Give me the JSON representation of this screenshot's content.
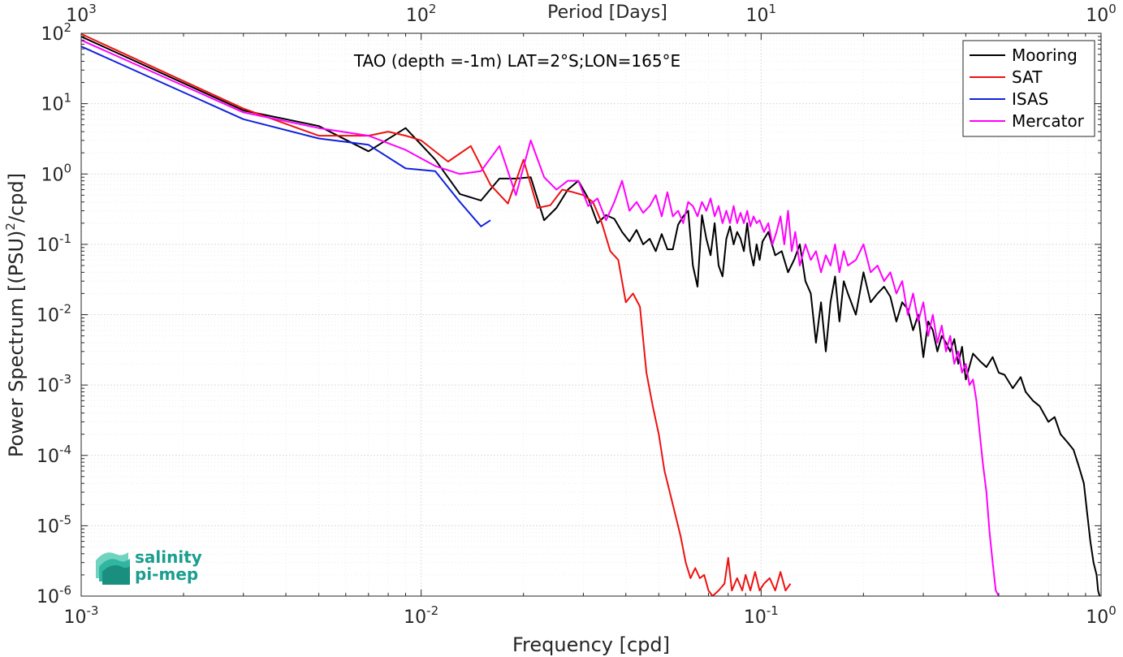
{
  "chart_data": {
    "type": "line",
    "title": "TAO (depth =-1m) LAT=2°S;LON=165°E",
    "xlabel": "Frequency [cpd]",
    "ylabel_main": "Power Spectrum [(PSU)",
    "ylabel_sup": "2",
    "ylabel_tail": "/cpd]",
    "x2label": "Period [Days]",
    "xscale": "log",
    "yscale": "log",
    "xlim": [
      0.001,
      1
    ],
    "ylim": [
      1e-06,
      100
    ],
    "grid": true,
    "legend_position": "top-right",
    "x_ticks": [
      {
        "v": 0.001,
        "base": "10",
        "exp": "-3"
      },
      {
        "v": 0.01,
        "base": "10",
        "exp": "-2"
      },
      {
        "v": 0.1,
        "base": "10",
        "exp": "-1"
      },
      {
        "v": 1,
        "base": "10",
        "exp": "0"
      }
    ],
    "x2_ticks": [
      {
        "v": 0.001,
        "base": "10",
        "exp": "3"
      },
      {
        "v": 0.01,
        "base": "10",
        "exp": "2"
      },
      {
        "v": 0.1,
        "base": "10",
        "exp": "1"
      },
      {
        "v": 1,
        "base": "10",
        "exp": "0"
      }
    ],
    "y_ticks": [
      {
        "v": 100,
        "base": "10",
        "exp": "2"
      },
      {
        "v": 10,
        "base": "10",
        "exp": "1"
      },
      {
        "v": 1,
        "base": "10",
        "exp": "0"
      },
      {
        "v": 0.1,
        "base": "10",
        "exp": "-1"
      },
      {
        "v": 0.01,
        "base": "10",
        "exp": "-2"
      },
      {
        "v": 0.001,
        "base": "10",
        "exp": "-3"
      },
      {
        "v": 0.0001,
        "base": "10",
        "exp": "-4"
      },
      {
        "v": 1e-05,
        "base": "10",
        "exp": "-5"
      },
      {
        "v": 1e-06,
        "base": "10",
        "exp": "-6"
      }
    ],
    "series": [
      {
        "name": "Mooring",
        "color": "#000000",
        "points": [
          [
            0.001,
            90
          ],
          [
            0.003,
            8
          ],
          [
            0.005,
            4.8
          ],
          [
            0.007,
            2.1
          ],
          [
            0.009,
            4.5
          ],
          [
            0.011,
            1.6
          ],
          [
            0.013,
            0.52
          ],
          [
            0.015,
            0.42
          ],
          [
            0.017,
            0.86
          ],
          [
            0.019,
            0.86
          ],
          [
            0.021,
            0.9
          ],
          [
            0.023,
            0.22
          ],
          [
            0.025,
            0.33
          ],
          [
            0.027,
            0.6
          ],
          [
            0.029,
            0.8
          ],
          [
            0.031,
            0.45
          ],
          [
            0.033,
            0.2
          ],
          [
            0.035,
            0.26
          ],
          [
            0.037,
            0.23
          ],
          [
            0.039,
            0.15
          ],
          [
            0.041,
            0.11
          ],
          [
            0.043,
            0.16
          ],
          [
            0.045,
            0.1
          ],
          [
            0.047,
            0.12
          ],
          [
            0.049,
            0.08
          ],
          [
            0.051,
            0.14
          ],
          [
            0.053,
            0.085
          ],
          [
            0.055,
            0.085
          ],
          [
            0.057,
            0.19
          ],
          [
            0.059,
            0.25
          ],
          [
            0.061,
            0.3
          ],
          [
            0.063,
            0.05
          ],
          [
            0.065,
            0.025
          ],
          [
            0.067,
            0.26
          ],
          [
            0.069,
            0.12
          ],
          [
            0.071,
            0.07
          ],
          [
            0.073,
            0.2
          ],
          [
            0.075,
            0.05
          ],
          [
            0.077,
            0.035
          ],
          [
            0.079,
            0.12
          ],
          [
            0.081,
            0.18
          ],
          [
            0.083,
            0.1
          ],
          [
            0.085,
            0.15
          ],
          [
            0.087,
            0.12
          ],
          [
            0.089,
            0.08
          ],
          [
            0.091,
            0.2
          ],
          [
            0.093,
            0.08
          ],
          [
            0.095,
            0.05
          ],
          [
            0.097,
            0.1
          ],
          [
            0.099,
            0.06
          ],
          [
            0.101,
            0.11
          ],
          [
            0.105,
            0.15
          ],
          [
            0.11,
            0.07
          ],
          [
            0.115,
            0.08
          ],
          [
            0.12,
            0.04
          ],
          [
            0.125,
            0.06
          ],
          [
            0.13,
            0.1
          ],
          [
            0.135,
            0.03
          ],
          [
            0.14,
            0.02
          ],
          [
            0.145,
            0.004
          ],
          [
            0.15,
            0.015
          ],
          [
            0.155,
            0.003
          ],
          [
            0.16,
            0.015
          ],
          [
            0.165,
            0.035
          ],
          [
            0.17,
            0.008
          ],
          [
            0.175,
            0.03
          ],
          [
            0.18,
            0.02
          ],
          [
            0.19,
            0.01
          ],
          [
            0.2,
            0.04
          ],
          [
            0.21,
            0.015
          ],
          [
            0.22,
            0.02
          ],
          [
            0.23,
            0.025
          ],
          [
            0.24,
            0.018
          ],
          [
            0.25,
            0.008
          ],
          [
            0.26,
            0.015
          ],
          [
            0.27,
            0.012
          ],
          [
            0.28,
            0.006
          ],
          [
            0.29,
            0.01
          ],
          [
            0.3,
            0.0025
          ],
          [
            0.31,
            0.008
          ],
          [
            0.32,
            0.006
          ],
          [
            0.33,
            0.003
          ],
          [
            0.34,
            0.005
          ],
          [
            0.35,
            0.004
          ],
          [
            0.36,
            0.003
          ],
          [
            0.37,
            0.0045
          ],
          [
            0.38,
            0.002
          ],
          [
            0.39,
            0.0035
          ],
          [
            0.4,
            0.0012
          ],
          [
            0.42,
            0.0028
          ],
          [
            0.44,
            0.0022
          ],
          [
            0.46,
            0.0018
          ],
          [
            0.48,
            0.0025
          ],
          [
            0.5,
            0.0015
          ],
          [
            0.52,
            0.0014
          ],
          [
            0.55,
            0.0009
          ],
          [
            0.58,
            0.0013
          ],
          [
            0.6,
            0.0008
          ],
          [
            0.63,
            0.0006
          ],
          [
            0.66,
            0.0005
          ],
          [
            0.7,
            0.0003
          ],
          [
            0.73,
            0.00035
          ],
          [
            0.76,
            0.0002
          ],
          [
            0.8,
            0.00015
          ],
          [
            0.83,
            0.00012
          ],
          [
            0.86,
            7e-05
          ],
          [
            0.89,
            4e-05
          ],
          [
            0.91,
            1.5e-05
          ],
          [
            0.93,
            6e-06
          ],
          [
            0.95,
            3e-06
          ],
          [
            0.97,
            2e-06
          ],
          [
            0.98,
            1.2e-06
          ],
          [
            0.99,
            1e-06
          ]
        ]
      },
      {
        "name": "SAT",
        "color": "#ee1111",
        "points": [
          [
            0.001,
            98
          ],
          [
            0.003,
            8.5
          ],
          [
            0.005,
            3.5
          ],
          [
            0.007,
            3.5
          ],
          [
            0.008,
            4.0
          ],
          [
            0.009,
            3.5
          ],
          [
            0.01,
            3.0
          ],
          [
            0.012,
            1.5
          ],
          [
            0.014,
            2.5
          ],
          [
            0.016,
            0.7
          ],
          [
            0.018,
            0.38
          ],
          [
            0.02,
            1.6
          ],
          [
            0.022,
            0.33
          ],
          [
            0.024,
            0.36
          ],
          [
            0.026,
            0.6
          ],
          [
            0.028,
            0.55
          ],
          [
            0.03,
            0.5
          ],
          [
            0.032,
            0.4
          ],
          [
            0.034,
            0.2
          ],
          [
            0.036,
            0.08
          ],
          [
            0.038,
            0.06
          ],
          [
            0.04,
            0.015
          ],
          [
            0.042,
            0.02
          ],
          [
            0.044,
            0.013
          ],
          [
            0.046,
            0.0015
          ],
          [
            0.048,
            0.0005
          ],
          [
            0.05,
            0.0002
          ],
          [
            0.052,
            6e-05
          ],
          [
            0.055,
            2e-05
          ],
          [
            0.058,
            7e-06
          ],
          [
            0.06,
            3e-06
          ],
          [
            0.062,
            1.8e-06
          ],
          [
            0.064,
            2.5e-06
          ],
          [
            0.066,
            1.8e-06
          ],
          [
            0.068,
            2e-06
          ],
          [
            0.07,
            1.2e-06
          ],
          [
            0.072,
            1e-06
          ],
          [
            0.075,
            1.2e-06
          ],
          [
            0.078,
            1.5e-06
          ],
          [
            0.08,
            3.5e-06
          ],
          [
            0.082,
            1.2e-06
          ],
          [
            0.085,
            1.8e-06
          ],
          [
            0.088,
            1.2e-06
          ],
          [
            0.09,
            2e-06
          ],
          [
            0.093,
            1.2e-06
          ],
          [
            0.096,
            2.2e-06
          ],
          [
            0.099,
            1.2e-06
          ],
          [
            0.102,
            1.5e-06
          ],
          [
            0.106,
            1.8e-06
          ],
          [
            0.11,
            1.2e-06
          ],
          [
            0.114,
            2.2e-06
          ],
          [
            0.118,
            1.2e-06
          ],
          [
            0.122,
            1.5e-06
          ]
        ]
      },
      {
        "name": "ISAS",
        "color": "#1122dd",
        "points": [
          [
            0.001,
            65
          ],
          [
            0.003,
            6.0
          ],
          [
            0.005,
            3.2
          ],
          [
            0.007,
            2.6
          ],
          [
            0.009,
            1.2
          ],
          [
            0.011,
            1.1
          ],
          [
            0.013,
            0.4
          ],
          [
            0.015,
            0.18
          ],
          [
            0.016,
            0.22
          ]
        ]
      },
      {
        "name": "Mercator",
        "color": "#ff00ff",
        "points": [
          [
            0.001,
            80
          ],
          [
            0.003,
            7.5
          ],
          [
            0.005,
            4.5
          ],
          [
            0.007,
            3.5
          ],
          [
            0.009,
            2.2
          ],
          [
            0.011,
            1.3
          ],
          [
            0.013,
            1.0
          ],
          [
            0.015,
            1.1
          ],
          [
            0.017,
            2.5
          ],
          [
            0.019,
            0.5
          ],
          [
            0.021,
            3.0
          ],
          [
            0.023,
            0.9
          ],
          [
            0.025,
            0.6
          ],
          [
            0.027,
            0.8
          ],
          [
            0.029,
            0.8
          ],
          [
            0.031,
            0.35
          ],
          [
            0.033,
            0.45
          ],
          [
            0.035,
            0.22
          ],
          [
            0.037,
            0.4
          ],
          [
            0.039,
            0.8
          ],
          [
            0.041,
            0.3
          ],
          [
            0.043,
            0.4
          ],
          [
            0.045,
            0.28
          ],
          [
            0.047,
            0.35
          ],
          [
            0.049,
            0.5
          ],
          [
            0.051,
            0.25
          ],
          [
            0.053,
            0.55
          ],
          [
            0.055,
            0.25
          ],
          [
            0.057,
            0.3
          ],
          [
            0.059,
            0.2
          ],
          [
            0.061,
            0.4
          ],
          [
            0.063,
            0.35
          ],
          [
            0.065,
            0.25
          ],
          [
            0.067,
            0.4
          ],
          [
            0.069,
            0.3
          ],
          [
            0.071,
            0.45
          ],
          [
            0.073,
            0.25
          ],
          [
            0.075,
            0.35
          ],
          [
            0.077,
            0.2
          ],
          [
            0.079,
            0.3
          ],
          [
            0.081,
            0.2
          ],
          [
            0.083,
            0.35
          ],
          [
            0.085,
            0.2
          ],
          [
            0.087,
            0.28
          ],
          [
            0.089,
            0.2
          ],
          [
            0.091,
            0.3
          ],
          [
            0.093,
            0.18
          ],
          [
            0.095,
            0.25
          ],
          [
            0.097,
            0.2
          ],
          [
            0.099,
            0.22
          ],
          [
            0.102,
            0.15
          ],
          [
            0.105,
            0.2
          ],
          [
            0.108,
            0.1
          ],
          [
            0.111,
            0.15
          ],
          [
            0.114,
            0.25
          ],
          [
            0.117,
            0.1
          ],
          [
            0.12,
            0.3
          ],
          [
            0.123,
            0.08
          ],
          [
            0.126,
            0.15
          ],
          [
            0.13,
            0.05
          ],
          [
            0.135,
            0.1
          ],
          [
            0.14,
            0.06
          ],
          [
            0.145,
            0.08
          ],
          [
            0.15,
            0.04
          ],
          [
            0.155,
            0.07
          ],
          [
            0.16,
            0.05
          ],
          [
            0.165,
            0.1
          ],
          [
            0.17,
            0.04
          ],
          [
            0.175,
            0.08
          ],
          [
            0.18,
            0.05
          ],
          [
            0.19,
            0.06
          ],
          [
            0.2,
            0.1
          ],
          [
            0.21,
            0.04
          ],
          [
            0.22,
            0.05
          ],
          [
            0.23,
            0.03
          ],
          [
            0.24,
            0.04
          ],
          [
            0.25,
            0.02
          ],
          [
            0.26,
            0.03
          ],
          [
            0.27,
            0.01
          ],
          [
            0.28,
            0.02
          ],
          [
            0.29,
            0.008
          ],
          [
            0.3,
            0.015
          ],
          [
            0.31,
            0.005
          ],
          [
            0.32,
            0.01
          ],
          [
            0.33,
            0.004
          ],
          [
            0.34,
            0.007
          ],
          [
            0.35,
            0.003
          ],
          [
            0.36,
            0.005
          ],
          [
            0.37,
            0.002
          ],
          [
            0.38,
            0.003
          ],
          [
            0.39,
            0.0015
          ],
          [
            0.4,
            0.002
          ],
          [
            0.41,
            0.001
          ],
          [
            0.42,
            0.0012
          ],
          [
            0.43,
            0.0006
          ],
          [
            0.44,
            0.0002
          ],
          [
            0.45,
            7e-05
          ],
          [
            0.46,
            3e-05
          ],
          [
            0.47,
            8e-06
          ],
          [
            0.48,
            3e-06
          ],
          [
            0.49,
            1.2e-06
          ],
          [
            0.5,
            1e-06
          ]
        ]
      }
    ],
    "logo": {
      "line1": "salinity",
      "line2": "pi-mep",
      "color": "#1a9e8f"
    }
  }
}
